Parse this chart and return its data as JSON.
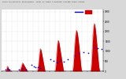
{
  "title": "Solar PV/Inverter Performance  Total PV Panel & Running Average Power Output",
  "bg_color": "#d8d8d8",
  "plot_bg_color": "#ffffff",
  "bar_color": "#cc0000",
  "avg_color": "#0000dd",
  "ylim": [
    0,
    3100
  ],
  "yticks": [
    0,
    500,
    1000,
    1500,
    2000,
    2500,
    3000
  ],
  "pv_data": [
    0,
    0,
    0,
    0,
    0,
    0,
    0,
    0,
    0,
    0,
    0,
    0,
    0,
    0,
    0,
    0,
    0,
    0,
    0,
    0,
    5,
    15,
    40,
    80,
    130,
    180,
    210,
    240,
    260,
    240,
    210,
    180,
    150,
    120,
    100,
    85,
    70,
    60,
    50,
    40,
    35,
    30,
    25,
    20,
    15,
    10,
    5,
    0,
    0,
    0,
    0,
    0,
    0,
    0,
    0,
    0,
    0,
    0,
    0,
    0,
    0,
    0,
    0,
    0,
    0,
    0,
    0,
    0,
    0,
    0,
    0,
    0,
    0,
    0,
    0,
    0,
    0,
    0,
    0,
    0,
    5,
    10,
    20,
    35,
    55,
    80,
    110,
    150,
    180,
    210,
    240,
    280,
    320,
    360,
    390,
    410,
    420,
    410,
    390,
    370,
    350,
    330,
    310,
    290,
    270,
    250,
    230,
    210,
    190,
    170,
    150,
    130,
    110,
    90,
    70,
    50,
    35,
    20,
    10,
    5,
    0,
    0,
    0,
    0,
    0,
    0,
    0,
    0,
    0,
    0,
    0,
    0,
    0,
    0,
    0,
    0,
    0,
    0,
    0,
    0,
    0,
    0,
    0,
    0,
    0,
    0,
    0,
    0,
    0,
    0,
    0,
    0,
    0,
    0,
    0,
    0,
    0,
    0,
    0,
    0,
    5,
    15,
    35,
    70,
    120,
    180,
    260,
    360,
    480,
    600,
    720,
    840,
    940,
    1020,
    1080,
    1120,
    1140,
    1120,
    1100,
    1060,
    1010,
    960,
    900,
    840,
    780,
    720,
    660,
    600,
    540,
    480,
    420,
    360,
    300,
    240,
    180,
    120,
    70,
    35,
    15,
    5,
    0,
    0,
    0,
    0,
    0,
    0,
    0,
    0,
    0,
    0,
    0,
    0,
    0,
    0,
    0,
    0,
    0,
    0,
    0,
    0,
    0,
    0,
    0,
    0,
    0,
    0,
    0,
    0,
    0,
    0,
    0,
    0,
    0,
    0,
    0,
    0,
    0,
    0,
    0,
    0,
    5,
    20,
    50,
    100,
    180,
    290,
    430,
    590,
    760,
    930,
    1090,
    1230,
    1350,
    1430,
    1500,
    1540,
    1550,
    1540,
    1510,
    1470,
    1420,
    1360,
    1290,
    1220,
    1150,
    1080,
    1010,
    940,
    870,
    800,
    730,
    660,
    590,
    520,
    450,
    380,
    310,
    240,
    170,
    100,
    50,
    20,
    5,
    0,
    0,
    0,
    0,
    0,
    0,
    0,
    0,
    0,
    0,
    0,
    0,
    0,
    0,
    0,
    0,
    0,
    0,
    0,
    0,
    0,
    0,
    0,
    0,
    0,
    0,
    0,
    0,
    0,
    0,
    0,
    0,
    0,
    0,
    0,
    0,
    5,
    20,
    55,
    110,
    200,
    320,
    470,
    640,
    820,
    1000,
    1180,
    1350,
    1500,
    1640,
    1760,
    1860,
    1940,
    2000,
    2040,
    2060,
    2050,
    2020,
    1980,
    1930,
    1870,
    1800,
    1720,
    1630,
    1540,
    1440,
    1340,
    1230,
    1120,
    1000,
    880,
    760,
    640,
    520,
    400,
    290,
    190,
    110,
    55,
    20,
    5,
    0,
    0,
    0,
    0,
    0,
    0,
    0,
    0,
    0,
    0,
    0,
    0,
    0,
    0,
    0,
    0,
    0,
    0,
    0,
    0,
    0,
    0,
    0,
    0,
    0,
    0,
    0,
    0,
    0,
    0,
    0,
    0,
    0,
    0,
    0,
    0,
    5,
    20,
    55,
    120,
    220,
    360,
    530,
    730,
    950,
    1180,
    1410,
    1630,
    1830,
    2000,
    2140,
    2250,
    2330,
    2380,
    2400,
    2390,
    2360,
    2310,
    2240,
    2160,
    2070,
    1970,
    1860,
    1740,
    1620,
    1490,
    1360,
    1230,
    1100,
    970,
    840,
    710,
    590,
    470,
    360,
    260,
    170,
    100,
    50,
    20,
    5,
    0,
    0,
    0,
    0,
    0,
    0,
    0,
    0,
    0,
    0,
    0,
    0,
    0,
    0,
    0
  ],
  "avg_x": [
    18,
    28,
    38,
    80,
    95,
    110,
    135,
    145,
    155,
    165,
    175,
    220,
    235,
    250,
    265,
    280,
    300,
    330,
    350,
    370,
    390,
    420,
    435,
    450,
    465,
    480,
    490,
    520,
    540
  ],
  "avg_y": [
    60,
    120,
    80,
    60,
    100,
    70,
    300,
    250,
    200,
    180,
    150,
    600,
    500,
    450,
    500,
    480,
    600,
    800,
    900,
    950,
    900,
    1200,
    1150,
    1100,
    1050,
    1000,
    950,
    1500,
    200
  ]
}
